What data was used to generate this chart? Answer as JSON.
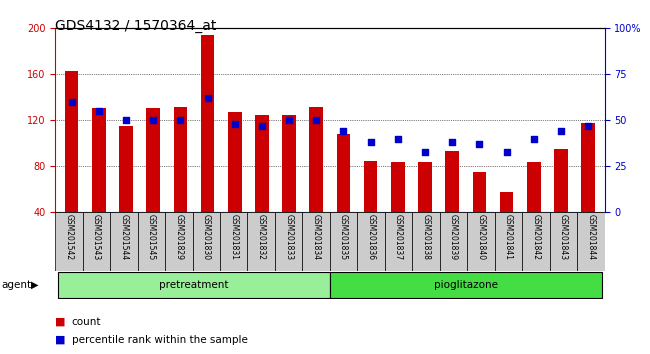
{
  "title": "GDS4132 / 1570364_at",
  "samples": [
    "GSM201542",
    "GSM201543",
    "GSM201544",
    "GSM201545",
    "GSM201829",
    "GSM201830",
    "GSM201831",
    "GSM201832",
    "GSM201833",
    "GSM201834",
    "GSM201835",
    "GSM201836",
    "GSM201837",
    "GSM201838",
    "GSM201839",
    "GSM201840",
    "GSM201841",
    "GSM201842",
    "GSM201843",
    "GSM201844"
  ],
  "counts": [
    163,
    131,
    115,
    131,
    132,
    194,
    127,
    125,
    125,
    132,
    108,
    85,
    84,
    84,
    93,
    75,
    58,
    84,
    95,
    118
  ],
  "percentile": [
    60,
    55,
    50,
    50,
    50,
    62,
    48,
    47,
    50,
    50,
    44,
    38,
    40,
    33,
    38,
    37,
    33,
    40,
    44,
    47
  ],
  "pretreatment_count": 10,
  "pioglitazone_count": 10,
  "ylim_left": [
    40,
    200
  ],
  "ylim_right": [
    0,
    100
  ],
  "yticks_left": [
    40,
    80,
    120,
    160,
    200
  ],
  "yticks_right": [
    0,
    25,
    50,
    75,
    100
  ],
  "ytick_right_labels": [
    "0",
    "25",
    "50",
    "75",
    "100%"
  ],
  "bar_color": "#cc0000",
  "dot_color": "#0000cc",
  "pretreatment_color": "#99ee99",
  "pioglitazone_color": "#44dd44",
  "background_color": "#cccccc",
  "title_fontsize": 10,
  "tick_fontsize": 7,
  "label_fontsize": 7.5,
  "bar_width": 0.5,
  "dot_size": 18
}
